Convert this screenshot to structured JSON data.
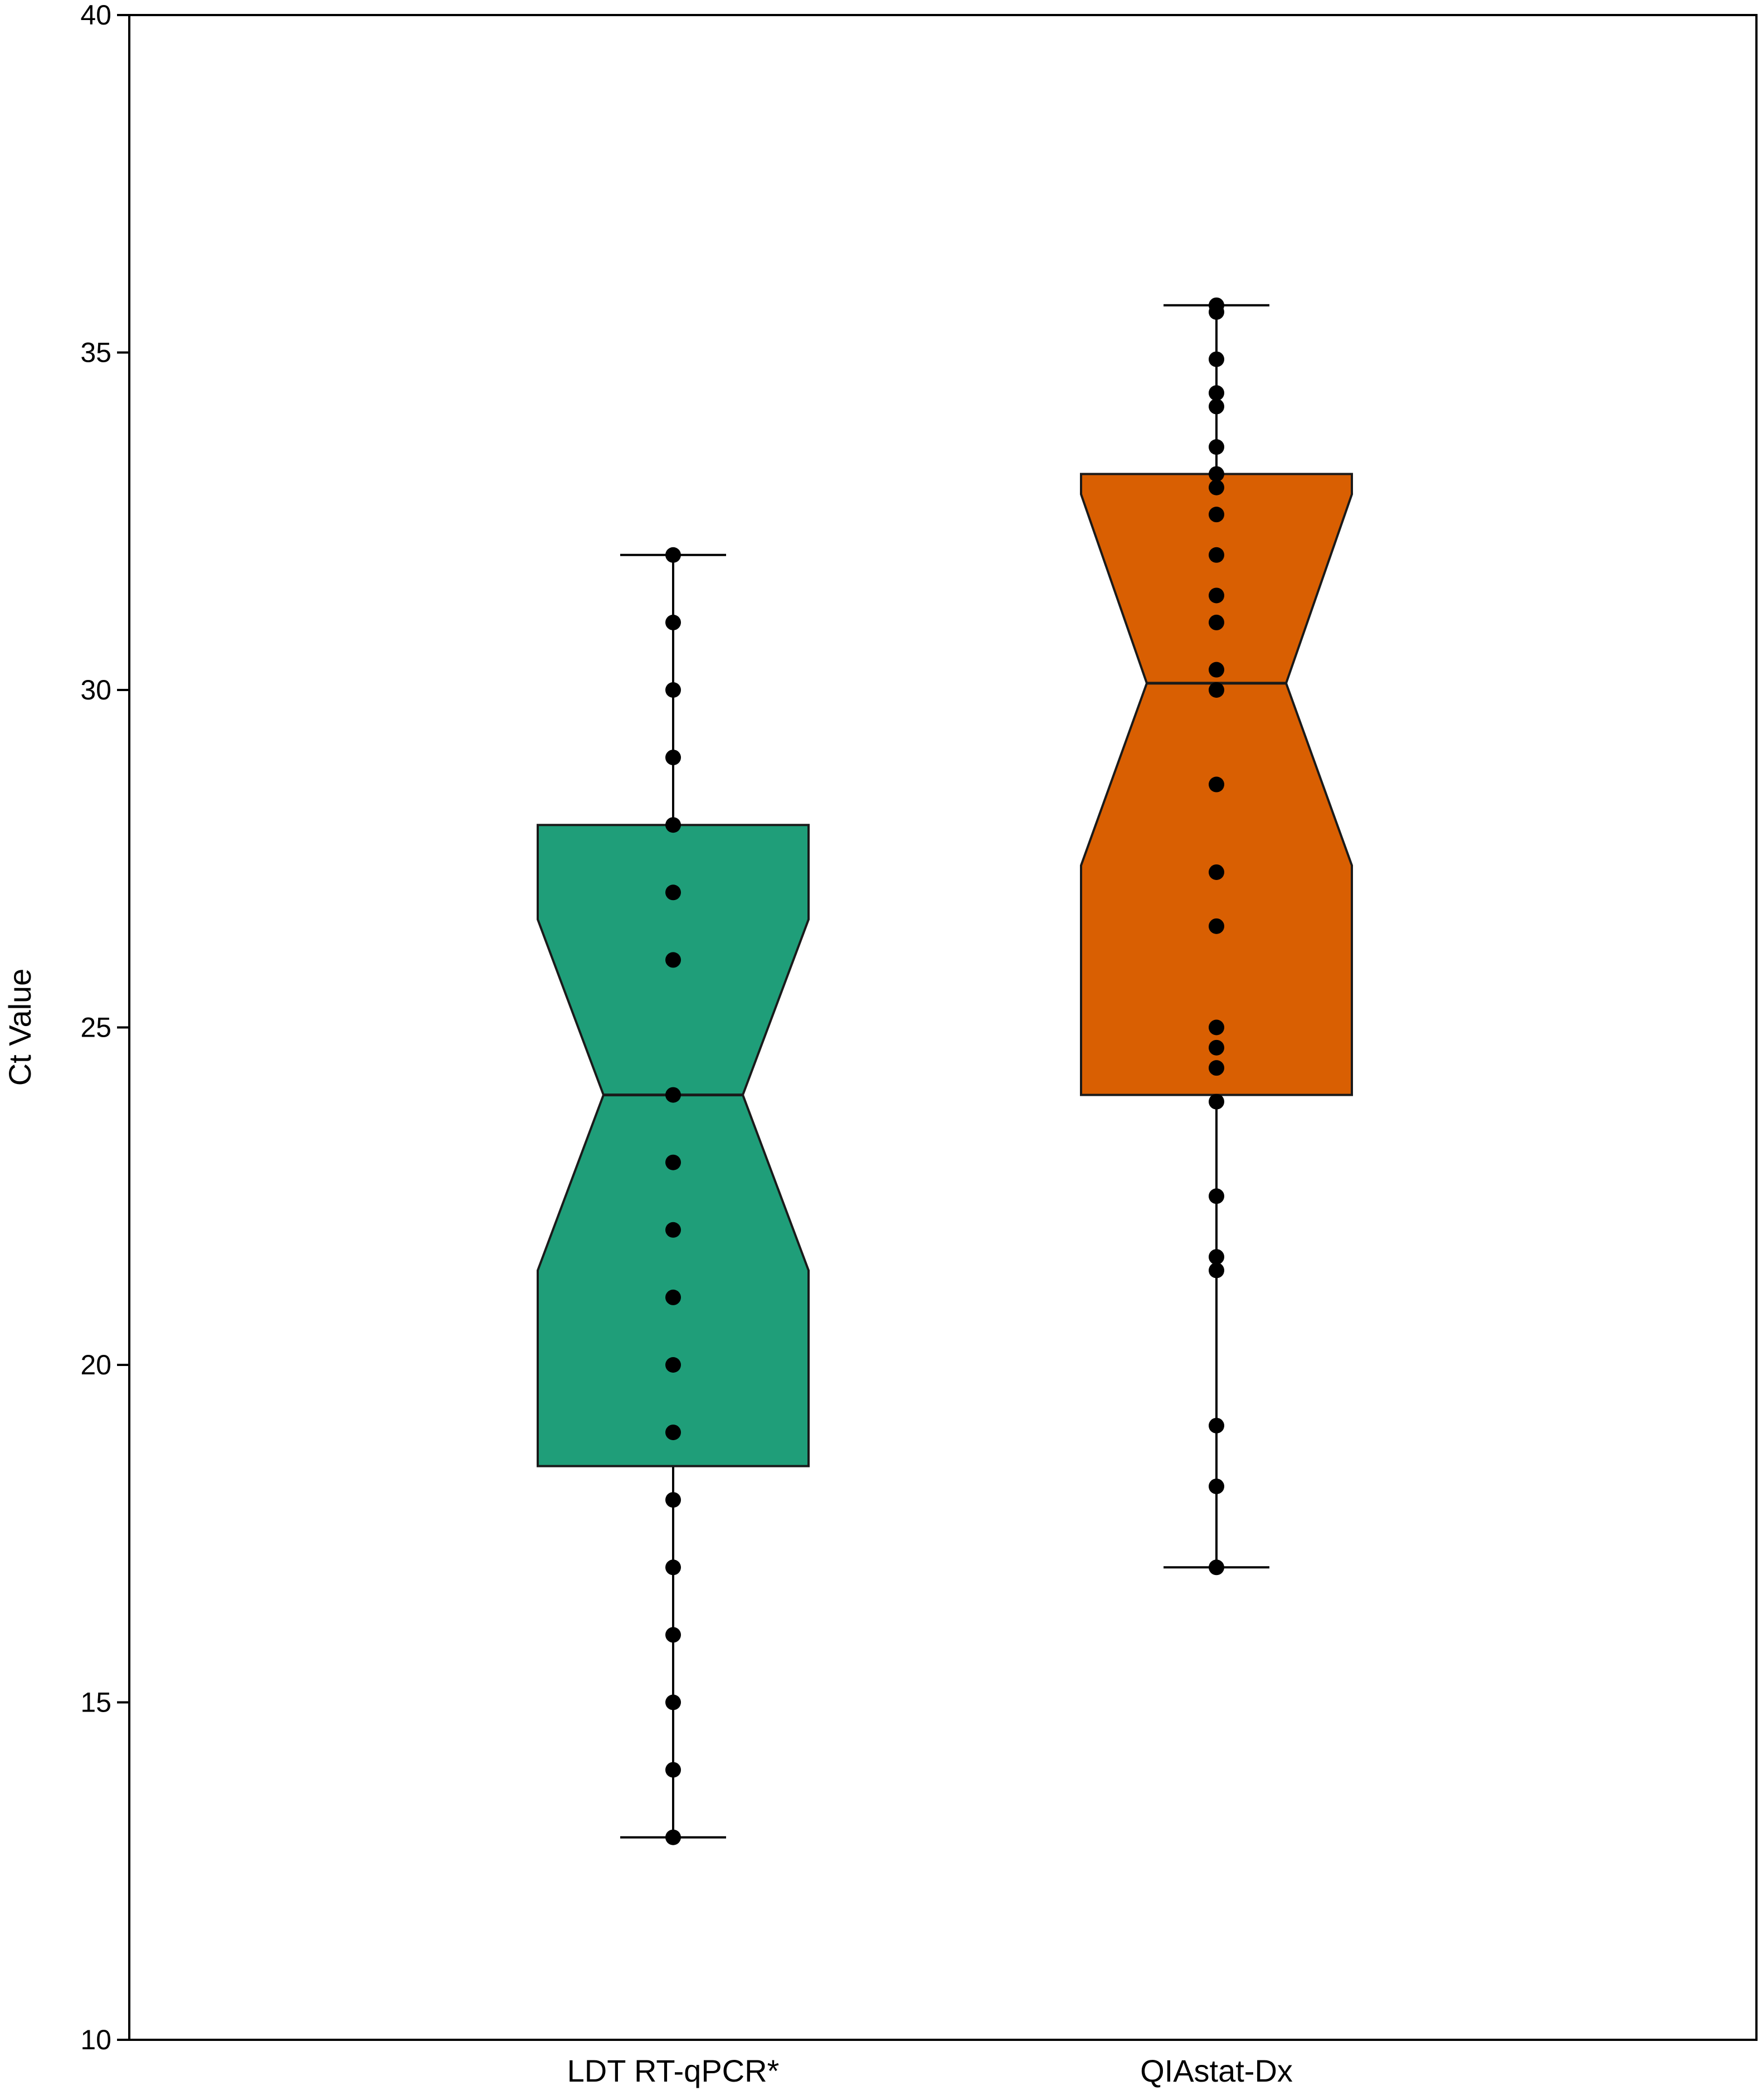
{
  "chart_data": {
    "type": "boxplot",
    "notched": true,
    "ylabel": "Ct Value",
    "xlabel": "",
    "ylim": [
      10,
      40
    ],
    "yticks": [
      10,
      15,
      20,
      25,
      30,
      35,
      40
    ],
    "grid": false,
    "categories": [
      "LDT RT-qPCR*",
      "QIAstat-Dx"
    ],
    "colors": {
      "LDT RT-qPCR*": "#1f9e79",
      "QIAstat-Dx": "#d95f02"
    },
    "boxes": [
      {
        "category": "LDT RT-qPCR*",
        "whisker_low": 13,
        "q1": 18.5,
        "median": 24,
        "q3": 28,
        "whisker_high": 32,
        "notch_low": 21.4,
        "notch_high": 26.6,
        "points": [
          13,
          14,
          15,
          16,
          17,
          18,
          19,
          20,
          21,
          22,
          23,
          24,
          26,
          27,
          28,
          29,
          30,
          31,
          32
        ]
      },
      {
        "category": "QIAstat-Dx",
        "whisker_low": 17,
        "q1": 24,
        "median": 30.1,
        "q3": 33.2,
        "whisker_high": 35.7,
        "notch_low": 27.4,
        "notch_high": 32.9,
        "points": [
          17,
          18.2,
          19.1,
          21.4,
          21.6,
          22.5,
          23.9,
          24.4,
          24.7,
          25,
          26.5,
          27.3,
          28.6,
          30,
          30.3,
          31,
          31.4,
          32,
          32.6,
          33,
          33.2,
          33.6,
          34.2,
          34.4,
          34.9,
          35.6,
          35.7
        ]
      }
    ]
  }
}
